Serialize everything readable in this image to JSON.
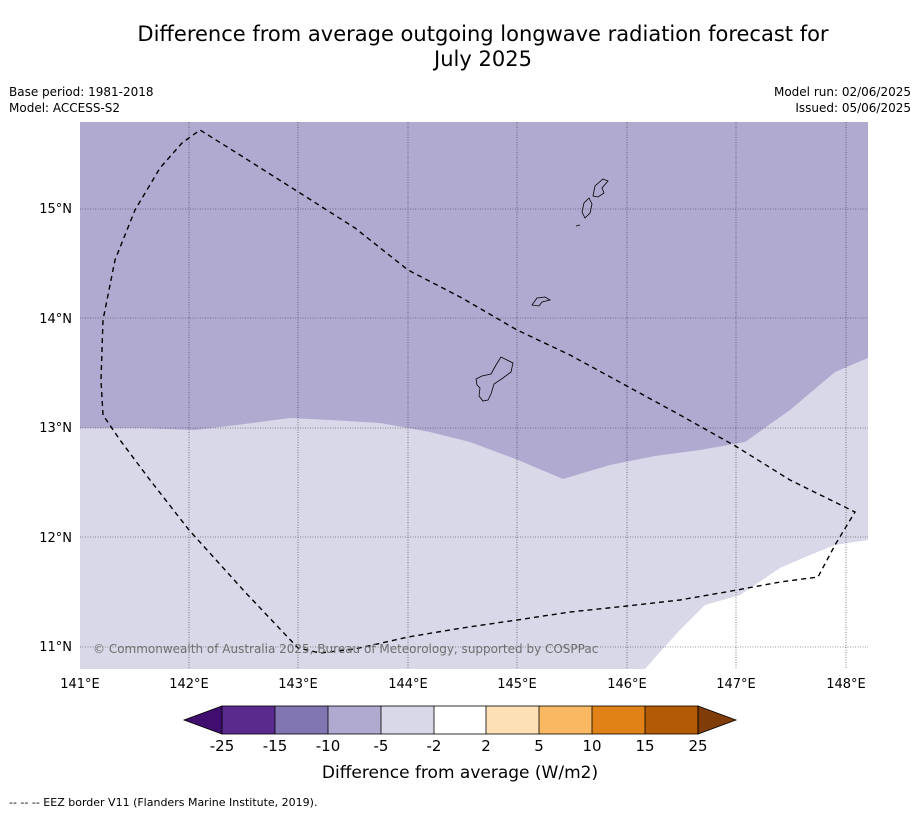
{
  "title_line1": "Difference from average outgoing longwave radiation forecast for",
  "title_line2": "July 2025",
  "meta": {
    "base_period": "Base period: 1981-2018",
    "model": "Model: ACCESS-S2",
    "model_run": "Model run: 02/06/2025",
    "issued": "Issued: 05/06/2025"
  },
  "map": {
    "lon_ticks": [
      "141°E",
      "142°E",
      "143°E",
      "144°E",
      "145°E",
      "146°E",
      "147°E",
      "148°E"
    ],
    "lat_ticks": [
      "15°N",
      "14°N",
      "13°N",
      "12°N",
      "11°N"
    ],
    "copyright": "© Commonwealth of Australia 2025, Bureau of Meteorology, supported by COSPPac",
    "region_colors": {
      "minus10_to_minus5": "#b0aad1",
      "minus5_to_minus2": "#d8d8e9",
      "minus2_to_2": "#ffffff"
    }
  },
  "colorbar": {
    "ticks": [
      "-25",
      "-15",
      "-10",
      "-5",
      "-2",
      "2",
      "5",
      "10",
      "15",
      "25"
    ],
    "colors": [
      "#3f0e6f",
      "#5b2a8d",
      "#8276b2",
      "#b0aad1",
      "#d8d8e9",
      "#ffffff",
      "#fde0b6",
      "#fbb863",
      "#e08215",
      "#b35a07",
      "#7f3b08"
    ],
    "label": "Difference from average (W/m2)"
  },
  "footnote": "--  --  -- EEZ border V11 (Flanders Marine Institute, 2019)."
}
